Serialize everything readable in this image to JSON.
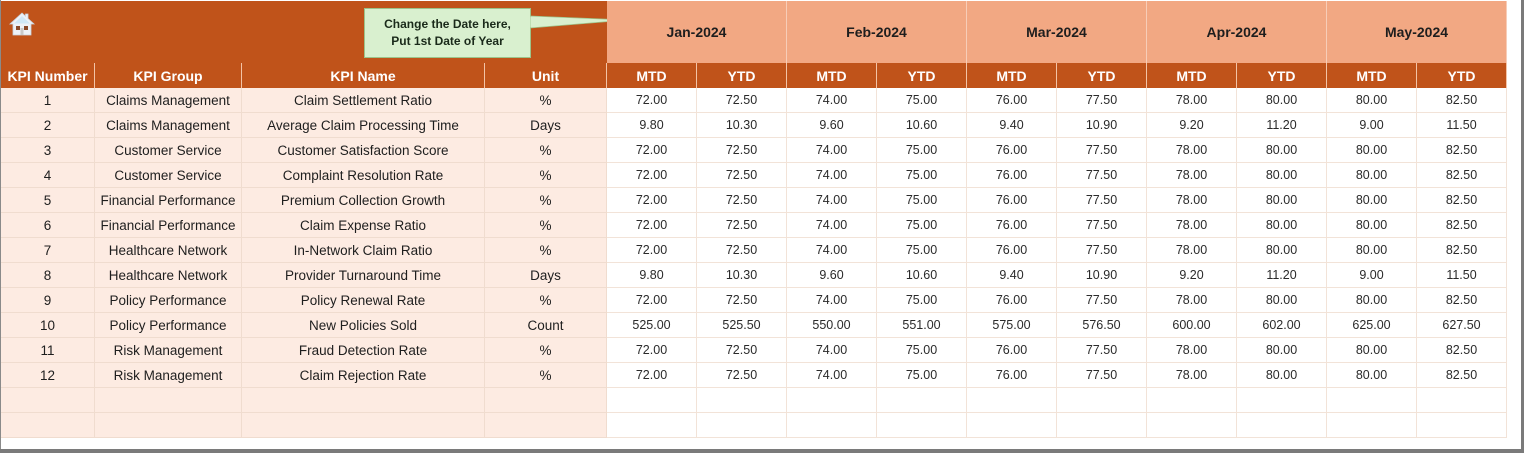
{
  "header": {
    "home_icon": "home-icon",
    "callout": {
      "line1": "Change the Date here,",
      "line2": "Put 1st Date of Year"
    },
    "months": [
      "Jan-2024",
      "Feb-2024",
      "Mar-2024",
      "Apr-2024",
      "May-2024"
    ]
  },
  "columns": {
    "kpi_number": "KPI Number",
    "kpi_group": "KPI Group",
    "kpi_name": "KPI Name",
    "unit": "Unit",
    "mtd": "MTD",
    "ytd": "YTD"
  },
  "rows": [
    {
      "num": "1",
      "group": "Claims Management",
      "name": "Claim Settlement Ratio",
      "unit": "%",
      "values": [
        "72.00",
        "72.50",
        "74.00",
        "75.00",
        "76.00",
        "77.50",
        "78.00",
        "80.00",
        "80.00",
        "82.50"
      ]
    },
    {
      "num": "2",
      "group": "Claims Management",
      "name": "Average Claim Processing Time",
      "unit": "Days",
      "values": [
        "9.80",
        "10.30",
        "9.60",
        "10.60",
        "9.40",
        "10.90",
        "9.20",
        "11.20",
        "9.00",
        "11.50"
      ]
    },
    {
      "num": "3",
      "group": "Customer Service",
      "name": "Customer Satisfaction Score",
      "unit": "%",
      "values": [
        "72.00",
        "72.50",
        "74.00",
        "75.00",
        "76.00",
        "77.50",
        "78.00",
        "80.00",
        "80.00",
        "82.50"
      ]
    },
    {
      "num": "4",
      "group": "Customer Service",
      "name": "Complaint Resolution Rate",
      "unit": "%",
      "values": [
        "72.00",
        "72.50",
        "74.00",
        "75.00",
        "76.00",
        "77.50",
        "78.00",
        "80.00",
        "80.00",
        "82.50"
      ]
    },
    {
      "num": "5",
      "group": "Financial Performance",
      "name": "Premium Collection Growth",
      "unit": "%",
      "values": [
        "72.00",
        "72.50",
        "74.00",
        "75.00",
        "76.00",
        "77.50",
        "78.00",
        "80.00",
        "80.00",
        "82.50"
      ]
    },
    {
      "num": "6",
      "group": "Financial Performance",
      "name": "Claim Expense Ratio",
      "unit": "%",
      "values": [
        "72.00",
        "72.50",
        "74.00",
        "75.00",
        "76.00",
        "77.50",
        "78.00",
        "80.00",
        "80.00",
        "82.50"
      ]
    },
    {
      "num": "7",
      "group": "Healthcare Network",
      "name": "In-Network Claim Ratio",
      "unit": "%",
      "values": [
        "72.00",
        "72.50",
        "74.00",
        "75.00",
        "76.00",
        "77.50",
        "78.00",
        "80.00",
        "80.00",
        "82.50"
      ]
    },
    {
      "num": "8",
      "group": "Healthcare Network",
      "name": "Provider Turnaround Time",
      "unit": "Days",
      "values": [
        "9.80",
        "10.30",
        "9.60",
        "10.60",
        "9.40",
        "10.90",
        "9.20",
        "11.20",
        "9.00",
        "11.50"
      ]
    },
    {
      "num": "9",
      "group": "Policy Performance",
      "name": "Policy Renewal Rate",
      "unit": "%",
      "values": [
        "72.00",
        "72.50",
        "74.00",
        "75.00",
        "76.00",
        "77.50",
        "78.00",
        "80.00",
        "80.00",
        "82.50"
      ]
    },
    {
      "num": "10",
      "group": "Policy Performance",
      "name": "New Policies Sold",
      "unit": "Count",
      "values": [
        "525.00",
        "525.50",
        "550.00",
        "551.00",
        "575.00",
        "576.50",
        "600.00",
        "602.00",
        "625.00",
        "627.50"
      ]
    },
    {
      "num": "11",
      "group": "Risk Management",
      "name": "Fraud Detection Rate",
      "unit": "%",
      "values": [
        "72.00",
        "72.50",
        "74.00",
        "75.00",
        "76.00",
        "77.50",
        "78.00",
        "80.00",
        "80.00",
        "82.50"
      ]
    },
    {
      "num": "12",
      "group": "Risk Management",
      "name": "Claim Rejection Rate",
      "unit": "%",
      "values": [
        "72.00",
        "72.50",
        "74.00",
        "75.00",
        "76.00",
        "77.50",
        "78.00",
        "80.00",
        "80.00",
        "82.50"
      ]
    },
    {
      "num": "",
      "group": "",
      "name": "",
      "unit": "",
      "values": [
        "",
        "",
        "",
        "",
        "",
        "",
        "",
        "",
        "",
        ""
      ]
    },
    {
      "num": "",
      "group": "",
      "name": "",
      "unit": "",
      "values": [
        "",
        "",
        "",
        "",
        "",
        "",
        "",
        "",
        "",
        ""
      ]
    }
  ],
  "colors": {
    "header_dark": "#c0531a",
    "header_light": "#f2a883",
    "meta_bg": "#fdebe2",
    "callout_bg": "#d9f0cf"
  }
}
